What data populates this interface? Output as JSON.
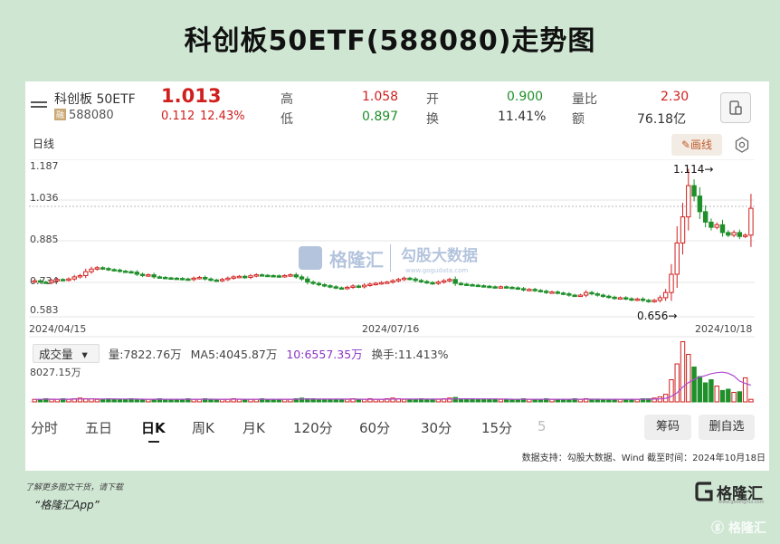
{
  "title": "科创板50ETF(588080)走势图",
  "quote": {
    "name": "科创板 50ETF",
    "market_badge": "融",
    "code": "588080",
    "price": "1.013",
    "change": "0.112",
    "change_pct": "12.43%",
    "high_label": "高",
    "high": "1.058",
    "low_label": "低",
    "low": "0.897",
    "open_label": "开",
    "open": "0.900",
    "turnover_label": "换",
    "turnover": "11.41%",
    "volratio_label": "量比",
    "volratio": "2.30",
    "amount_label": "额",
    "amount": "76.18亿"
  },
  "period_label": "日线",
  "draw_label": "画线",
  "price_chart": {
    "y_ticks": [
      "1.187",
      "1.036",
      "0.885",
      "0.734",
      "0.583"
    ],
    "x_ticks": [
      "2024/04/15",
      "2024/07/16",
      "2024/10/18"
    ],
    "high_annotation": "1.114→",
    "low_annotation": "0.656→"
  },
  "watermark": {
    "brand": "格隆汇",
    "brand2": "勾股大数据",
    "site": "www.gogudata.com"
  },
  "volume": {
    "selector": "成交量",
    "vol": "量:7822.76万",
    "ma5": "MA5:4045.87万",
    "ma10": "10:6557.35万",
    "turnover": "换手:11.413%",
    "axis_label": "8027.15万"
  },
  "tabs": [
    "分时",
    "五日",
    "日K",
    "周K",
    "月K",
    "120分",
    "60分",
    "30分",
    "15分",
    "5"
  ],
  "active_tab": "日K",
  "buttons": {
    "chips": "筹码",
    "delete_fav": "删自选"
  },
  "source_note": "数据支持：勾股大数据、Wind 截至时间：2024年10月18日",
  "footer": {
    "line1": "了解更多图文干货，请下载",
    "line2": "“格隆汇App”",
    "logo_text": "格隆汇",
    "logo_sub": "www.gelonghui.com",
    "corner_mark": "格隆汇"
  },
  "colors": {
    "up": "#d0201e",
    "down": "#1f8f2a",
    "ma": "#b04ad0",
    "bg": "#cfe6d3"
  },
  "chart_data": {
    "type": "candlestick",
    "x_range": [
      "2024/04/15",
      "2024/10/18"
    ],
    "ylim": [
      0.583,
      1.187
    ],
    "high_point": 1.114,
    "low_point": 0.656,
    "close": [
      0.735,
      0.73,
      0.728,
      0.735,
      0.74,
      0.738,
      0.742,
      0.75,
      0.755,
      0.77,
      0.78,
      0.785,
      0.782,
      0.778,
      0.776,
      0.772,
      0.77,
      0.768,
      0.76,
      0.755,
      0.758,
      0.75,
      0.748,
      0.746,
      0.745,
      0.744,
      0.742,
      0.74,
      0.745,
      0.748,
      0.742,
      0.738,
      0.736,
      0.74,
      0.745,
      0.75,
      0.752,
      0.748,
      0.754,
      0.758,
      0.756,
      0.755,
      0.754,
      0.752,
      0.755,
      0.758,
      0.75,
      0.742,
      0.73,
      0.725,
      0.72,
      0.716,
      0.712,
      0.708,
      0.706,
      0.71,
      0.715,
      0.712,
      0.718,
      0.722,
      0.725,
      0.728,
      0.73,
      0.735,
      0.74,
      0.745,
      0.742,
      0.736,
      0.732,
      0.728,
      0.725,
      0.73,
      0.735,
      0.74,
      0.725,
      0.722,
      0.72,
      0.718,
      0.716,
      0.714,
      0.712,
      0.71,
      0.712,
      0.71,
      0.708,
      0.705,
      0.7,
      0.702,
      0.698,
      0.695,
      0.69,
      0.692,
      0.688,
      0.685,
      0.68,
      0.678,
      0.68,
      0.69,
      0.685,
      0.68,
      0.676,
      0.672,
      0.668,
      0.67,
      0.666,
      0.662,
      0.665,
      0.66,
      0.656,
      0.66,
      0.67,
      0.69,
      0.76,
      0.88,
      0.98,
      1.1,
      1.06,
      1.0,
      0.96,
      0.94,
      0.95,
      0.92,
      0.91,
      0.92,
      0.905,
      0.91,
      1.013
    ],
    "volume_relative": [
      0.04,
      0.04,
      0.05,
      0.04,
      0.04,
      0.05,
      0.04,
      0.05,
      0.06,
      0.05,
      0.05,
      0.04,
      0.04,
      0.05,
      0.04,
      0.04,
      0.04,
      0.05,
      0.04,
      0.04,
      0.04,
      0.04,
      0.05,
      0.04,
      0.04,
      0.04,
      0.04,
      0.05,
      0.04,
      0.04,
      0.05,
      0.04,
      0.04,
      0.04,
      0.04,
      0.05,
      0.04,
      0.04,
      0.04,
      0.04,
      0.05,
      0.04,
      0.04,
      0.04,
      0.04,
      0.04,
      0.05,
      0.06,
      0.05,
      0.05,
      0.04,
      0.04,
      0.04,
      0.04,
      0.04,
      0.04,
      0.05,
      0.04,
      0.04,
      0.05,
      0.04,
      0.04,
      0.05,
      0.06,
      0.05,
      0.04,
      0.04,
      0.04,
      0.05,
      0.04,
      0.04,
      0.04,
      0.05,
      0.06,
      0.07,
      0.05,
      0.04,
      0.04,
      0.04,
      0.04,
      0.04,
      0.04,
      0.04,
      0.04,
      0.04,
      0.04,
      0.05,
      0.04,
      0.04,
      0.04,
      0.05,
      0.04,
      0.04,
      0.04,
      0.04,
      0.05,
      0.04,
      0.05,
      0.04,
      0.04,
      0.04,
      0.04,
      0.04,
      0.04,
      0.04,
      0.04,
      0.04,
      0.05,
      0.05,
      0.06,
      0.08,
      0.12,
      0.35,
      0.6,
      0.95,
      0.75,
      0.55,
      0.4,
      0.3,
      0.35,
      0.25,
      0.18,
      0.2,
      0.15,
      0.16,
      0.38
    ]
  }
}
